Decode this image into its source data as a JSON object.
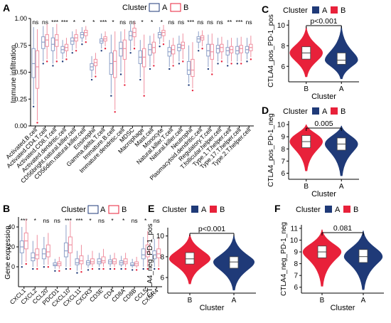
{
  "colors": {
    "A": "#1f3a78",
    "B": "#e8213a",
    "A_light": "#8ea0c8",
    "B_light": "#f090a0",
    "axis": "#000000",
    "dot_A": "#1f3a78",
    "dot_B": "#e8213a"
  },
  "panels": {
    "A": {
      "letter": "A",
      "legend_title": "Cluster",
      "legend_items": [
        "A",
        "B"
      ],
      "ylabel": "Immune infiltration",
      "yticks": [
        "0.00",
        "0.25",
        "0.50",
        "0.75",
        "1.00"
      ],
      "significance": [
        "ns",
        "ns",
        "***",
        "***",
        "*",
        "*",
        "*",
        "***",
        "*",
        "ns",
        "ns",
        "*",
        "*",
        "*",
        "ns",
        "ns",
        "***",
        "ns",
        "ns",
        "ns",
        "**",
        "***",
        "ns"
      ],
      "categories": [
        "Activated.B.cell",
        "Activated.CD4.T.cell",
        "Activated.CD8.T.cell",
        "Activated.dendritic.cell",
        "CD56bright.natural.killer.cell",
        "CD56dim.natural.killer.cell",
        "Eosinophil",
        "Gamma.delta.T.cell",
        "Immature.B.cell",
        "Immature.dendritic.cell",
        "MDSC",
        "Macrophage",
        "Mast.cell",
        "Monocyte",
        "Natural.killer.T.cell",
        "Natural.killer.cell",
        "Neutrophil",
        "Plasmacytoid.dendritic.cell",
        "Regulatory.T.cell",
        "T.follicular.helper.cell",
        "Type.1.T.helper.cell",
        "Type.17.T.helper.cell",
        "Type.2.T.helper.cell"
      ]
    },
    "B": {
      "letter": "B",
      "legend_title": "Cluster",
      "legend_items": [
        "A",
        "B"
      ],
      "ylabel": "Gene expression",
      "yticks": [
        "0",
        "20",
        "40"
      ],
      "significance": [
        "***",
        "*",
        "ns",
        "ns",
        "***",
        "***",
        "*",
        "ns",
        "*",
        "*",
        "ns",
        "*",
        "ns"
      ],
      "categories": [
        "CXCL1",
        "CXCL2",
        "CCL20",
        "PDCD1",
        "CXCL10",
        "CXCL11",
        "CXCR3",
        "CD3E",
        "CD4",
        "CD8A",
        "CD8B",
        "CCL5",
        "CXCR4"
      ]
    },
    "C": {
      "letter": "C",
      "legend_title": "Cluster",
      "legend_items": [
        "A",
        "B"
      ],
      "ylabel": "CTLA4_pos_PD-1_pos",
      "xlabel": "Cluster",
      "xticks": [
        "B",
        "A"
      ],
      "yticks": [
        "6",
        "8",
        "10"
      ],
      "pvalue": "p<0.001"
    },
    "D": {
      "letter": "D",
      "legend_title": "Cluster",
      "legend_items": [
        "A",
        "B"
      ],
      "ylabel": "CTLA4_pos_PD-1_neg",
      "xlabel": "Cluster",
      "xticks": [
        "B",
        "A"
      ],
      "yticks": [
        "6",
        "7",
        "8",
        "9",
        "10"
      ],
      "pvalue": "0.005"
    },
    "E": {
      "letter": "E",
      "legend_title": "Cluster",
      "legend_items": [
        "A",
        "B"
      ],
      "ylabel": "CTLA4_neg_PD-1_pos",
      "xlabel": "Cluster",
      "xticks": [
        "B",
        "A"
      ],
      "yticks": [
        "6",
        "8",
        "10"
      ],
      "pvalue": "p<0.001"
    },
    "F": {
      "letter": "F",
      "legend_title": "Cluster",
      "legend_items": [
        "A",
        "B"
      ],
      "ylabel": "CTLA4_neg_PD-1_neg",
      "xlabel": "Cluster",
      "xticks": [
        "B",
        "A"
      ],
      "yticks": [
        "6",
        "7",
        "8",
        "9",
        "10",
        "11"
      ],
      "pvalue": "0.081"
    }
  },
  "chart_data": [
    {
      "type": "box",
      "panel": "A",
      "ylabel": "Immune infiltration",
      "ylim": [
        0,
        1
      ],
      "categories": [
        "Activated.B.cell",
        "Activated.CD4.T.cell",
        "Activated.CD8.T.cell",
        "Activated.dendritic.cell",
        "CD56bright.natural.killer.cell",
        "CD56dim.natural.killer.cell",
        "Eosinophil",
        "Gamma.delta.T.cell",
        "Immature.B.cell",
        "Immature.dendritic.cell",
        "MDSC",
        "Macrophage",
        "Mast.cell",
        "Monocyte",
        "Natural.killer.T.cell",
        "Natural.killer.cell",
        "Neutrophil",
        "Plasmacytoid.dendritic.cell",
        "Regulatory.T.cell",
        "T.follicular.helper.cell",
        "Type.1.T.helper.cell",
        "Type.17.T.helper.cell",
        "Type.2.T.helper.cell"
      ],
      "series": [
        {
          "name": "A",
          "boxes": [
            [
              0.2,
              0.45,
              0.58,
              0.72,
              0.92
            ],
            [
              0.6,
              0.72,
              0.78,
              0.83,
              0.93
            ],
            [
              0.58,
              0.7,
              0.76,
              0.82,
              0.92
            ],
            [
              0.62,
              0.68,
              0.71,
              0.74,
              0.8
            ],
            [
              0.7,
              0.76,
              0.79,
              0.82,
              0.88
            ],
            [
              0.78,
              0.82,
              0.85,
              0.87,
              0.92
            ],
            [
              0.45,
              0.52,
              0.55,
              0.58,
              0.65
            ],
            [
              0.72,
              0.77,
              0.79,
              0.81,
              0.86
            ],
            [
              0.3,
              0.48,
              0.58,
              0.68,
              0.85
            ],
            [
              0.5,
              0.65,
              0.72,
              0.78,
              0.88
            ],
            [
              0.7,
              0.8,
              0.84,
              0.88,
              0.95
            ],
            [
              0.45,
              0.58,
              0.64,
              0.7,
              0.8
            ],
            [
              0.55,
              0.66,
              0.71,
              0.76,
              0.84
            ],
            [
              0.76,
              0.82,
              0.85,
              0.87,
              0.92
            ],
            [
              0.55,
              0.65,
              0.69,
              0.73,
              0.8
            ],
            [
              0.6,
              0.7,
              0.73,
              0.76,
              0.84
            ],
            [
              0.4,
              0.48,
              0.52,
              0.6,
              0.75
            ],
            [
              0.72,
              0.78,
              0.81,
              0.83,
              0.88
            ],
            [
              0.55,
              0.65,
              0.7,
              0.76,
              0.85
            ],
            [
              0.6,
              0.68,
              0.72,
              0.75,
              0.82
            ],
            [
              0.58,
              0.66,
              0.7,
              0.73,
              0.8
            ],
            [
              0.6,
              0.67,
              0.7,
              0.74,
              0.82
            ],
            [
              0.62,
              0.68,
              0.71,
              0.74,
              0.82
            ]
          ]
        },
        {
          "name": "B",
          "boxes": [
            [
              0.05,
              0.35,
              0.55,
              0.7,
              0.9
            ],
            [
              0.62,
              0.74,
              0.8,
              0.85,
              0.95
            ],
            [
              0.62,
              0.74,
              0.8,
              0.85,
              0.95
            ],
            [
              0.64,
              0.7,
              0.73,
              0.76,
              0.82
            ],
            [
              0.72,
              0.79,
              0.82,
              0.85,
              0.9
            ],
            [
              0.8,
              0.84,
              0.87,
              0.89,
              0.93
            ],
            [
              0.48,
              0.56,
              0.59,
              0.62,
              0.68
            ],
            [
              0.74,
              0.79,
              0.81,
              0.83,
              0.88
            ],
            [
              0.15,
              0.45,
              0.6,
              0.7,
              0.88
            ],
            [
              0.4,
              0.62,
              0.72,
              0.8,
              0.9
            ],
            [
              0.74,
              0.83,
              0.87,
              0.91,
              0.97
            ],
            [
              0.3,
              0.55,
              0.64,
              0.72,
              0.85
            ],
            [
              0.58,
              0.68,
              0.73,
              0.78,
              0.86
            ],
            [
              0.78,
              0.84,
              0.87,
              0.89,
              0.94
            ],
            [
              0.58,
              0.67,
              0.71,
              0.75,
              0.82
            ],
            [
              0.62,
              0.72,
              0.75,
              0.78,
              0.86
            ],
            [
              0.35,
              0.46,
              0.52,
              0.62,
              0.78
            ],
            [
              0.74,
              0.8,
              0.82,
              0.84,
              0.89
            ],
            [
              0.5,
              0.62,
              0.69,
              0.76,
              0.86
            ],
            [
              0.62,
              0.69,
              0.73,
              0.76,
              0.83
            ],
            [
              0.6,
              0.68,
              0.71,
              0.74,
              0.82
            ],
            [
              0.6,
              0.68,
              0.72,
              0.75,
              0.83
            ],
            [
              0.64,
              0.7,
              0.73,
              0.76,
              0.84
            ]
          ]
        }
      ]
    },
    {
      "type": "box",
      "panel": "B",
      "ylabel": "Gene expression",
      "ylim": [
        -20,
        50
      ],
      "categories": [
        "CXCL1",
        "CXCL2",
        "CCL20",
        "PDCD1",
        "CXCL10",
        "CXCL11",
        "CXCR3",
        "CD3E",
        "CD4",
        "CD8A",
        "CD8B",
        "CCL5",
        "CXCR4"
      ],
      "series": [
        {
          "name": "A",
          "boxes": [
            [
              2,
              14,
              20,
              26,
              40
            ],
            [
              0,
              6,
              9,
              14,
              26
            ],
            [
              2,
              8,
              13,
              18,
              30
            ],
            [
              -2,
              1,
              2,
              4,
              8
            ],
            [
              0,
              10,
              16,
              24,
              42
            ],
            [
              -4,
              2,
              4,
              8,
              16
            ],
            [
              -1,
              2,
              4,
              6,
              12
            ],
            [
              0,
              3,
              5,
              8,
              14
            ],
            [
              0,
              3,
              5,
              7,
              12
            ],
            [
              0,
              2,
              4,
              6,
              11
            ],
            [
              -1,
              1,
              2,
              4,
              8
            ],
            [
              0,
              8,
              12,
              18,
              30
            ],
            [
              0,
              8,
              12,
              16,
              28
            ]
          ]
        },
        {
          "name": "B",
          "boxes": [
            [
              5,
              18,
              26,
              34,
              48
            ],
            [
              0,
              8,
              12,
              18,
              32
            ],
            [
              2,
              10,
              15,
              22,
              34
            ],
            [
              -2,
              1,
              3,
              5,
              10
            ],
            [
              0,
              14,
              22,
              30,
              46
            ],
            [
              -3,
              3,
              6,
              11,
              22
            ],
            [
              0,
              3,
              5,
              8,
              16
            ],
            [
              0,
              4,
              6,
              10,
              18
            ],
            [
              0,
              3,
              5,
              8,
              14
            ],
            [
              0,
              3,
              5,
              8,
              14
            ],
            [
              -1,
              1,
              3,
              5,
              10
            ],
            [
              0,
              10,
              15,
              22,
              36
            ],
            [
              0,
              9,
              13,
              18,
              30
            ]
          ]
        }
      ]
    },
    {
      "type": "violin",
      "panel": "C",
      "ylabel": "CTLA4_pos_PD-1_pos",
      "xlabel": "Cluster",
      "categories": [
        "B",
        "A"
      ],
      "ylim": [
        4.5,
        10.5
      ],
      "series": [
        {
          "name": "B",
          "min": 5.0,
          "q1": 6.7,
          "median": 7.3,
          "q3": 7.9,
          "max": 9.8
        },
        {
          "name": "A",
          "min": 4.8,
          "q1": 6.2,
          "median": 6.6,
          "q3": 7.3,
          "max": 9.9
        }
      ],
      "pvalue": "p<0.001"
    },
    {
      "type": "violin",
      "panel": "D",
      "ylabel": "CTLA4_pos_PD-1_neg",
      "xlabel": "Cluster",
      "categories": [
        "B",
        "A"
      ],
      "ylim": [
        5.5,
        10.3
      ],
      "series": [
        {
          "name": "B",
          "min": 6.2,
          "q1": 8.1,
          "median": 8.6,
          "q3": 9.1,
          "max": 10.0
        },
        {
          "name": "A",
          "min": 5.8,
          "q1": 7.9,
          "median": 8.4,
          "q3": 8.9,
          "max": 9.9
        }
      ],
      "pvalue": "0.005"
    },
    {
      "type": "violin",
      "panel": "E",
      "ylabel": "CTLA4_neg_PD-1_pos",
      "xlabel": "Cluster",
      "categories": [
        "B",
        "A"
      ],
      "ylim": [
        4.5,
        10.8
      ],
      "series": [
        {
          "name": "B",
          "min": 5.4,
          "q1": 7.3,
          "median": 7.8,
          "q3": 8.4,
          "max": 10.2
        },
        {
          "name": "A",
          "min": 4.8,
          "q1": 6.9,
          "median": 7.5,
          "q3": 8.0,
          "max": 10.1
        }
      ],
      "pvalue": "p<0.001"
    },
    {
      "type": "violin",
      "panel": "F",
      "ylabel": "CTLA4_neg_PD-1_neg",
      "xlabel": "Cluster",
      "categories": [
        "B",
        "A"
      ],
      "ylim": [
        5.5,
        11.3
      ],
      "series": [
        {
          "name": "B",
          "min": 6.1,
          "q1": 8.5,
          "median": 9.0,
          "q3": 9.5,
          "max": 10.9
        },
        {
          "name": "A",
          "min": 5.8,
          "q1": 8.1,
          "median": 8.6,
          "q3": 9.2,
          "max": 10.8
        }
      ],
      "pvalue": "0.081"
    }
  ]
}
